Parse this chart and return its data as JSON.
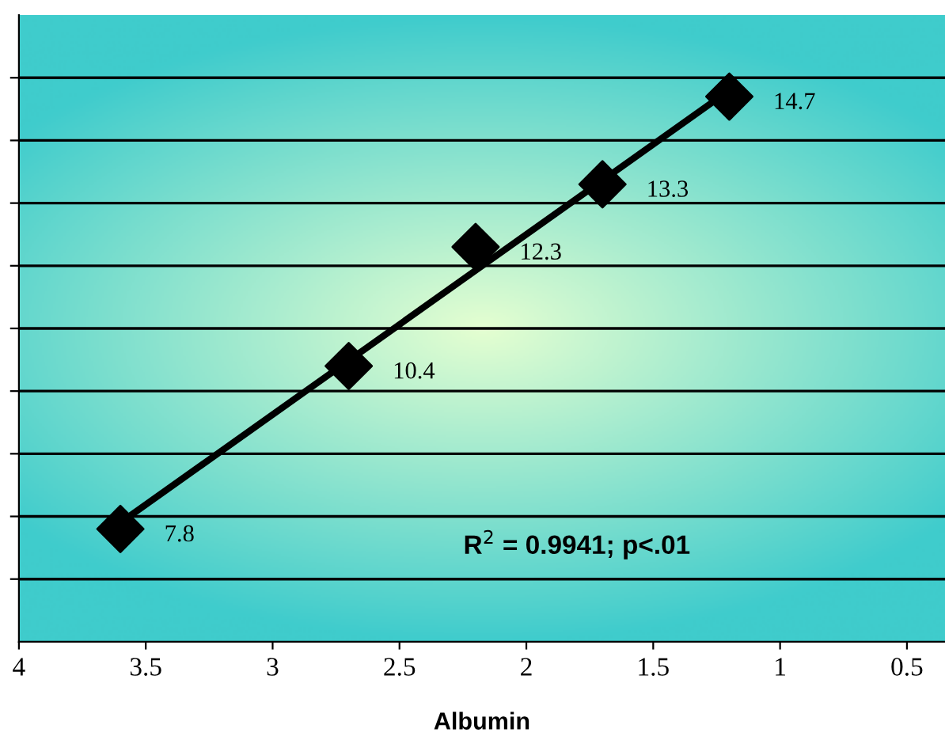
{
  "chart_data": {
    "type": "scatter",
    "xlabel": "Albumin",
    "xlim": [
      4,
      0.35
    ],
    "xticks": [
      4,
      3.5,
      3,
      2.5,
      2,
      1.5,
      1,
      0.5
    ],
    "ylim": [
      6,
      16
    ],
    "yticks": [
      {
        "value": 7,
        "label": null
      },
      {
        "value": 8,
        "label": null
      },
      {
        "value": 9,
        "label": null
      },
      {
        "value": 10,
        "label": null
      },
      {
        "value": 11,
        "label": null
      },
      {
        "value": 12,
        "label": null
      },
      {
        "value": 13,
        "label": null
      },
      {
        "value": 14,
        "label": null
      },
      {
        "value": 15,
        "label": null
      }
    ],
    "tick_labels": "x",
    "grid": "y",
    "legend": false,
    "series": [
      {
        "color": "#000000",
        "marker": "diamond",
        "x": [
          3.6,
          2.7,
          2.2,
          1.7,
          1.2
        ],
        "values": [
          7.8,
          10.4,
          12.3,
          13.3,
          14.7
        ],
        "value_labels": [
          "7.8",
          "10.4",
          "12.3",
          "13.3",
          "14.7"
        ]
      },
      {
        "type": "line",
        "color": "#000000",
        "marker": "none",
        "line_style": "solid",
        "x": [
          3.6,
          1.2
        ],
        "values": [
          7.9,
          14.8
        ]
      }
    ],
    "annotations": [
      "R$^{2}$ = 0.9941; p<.01"
    ]
  }
}
